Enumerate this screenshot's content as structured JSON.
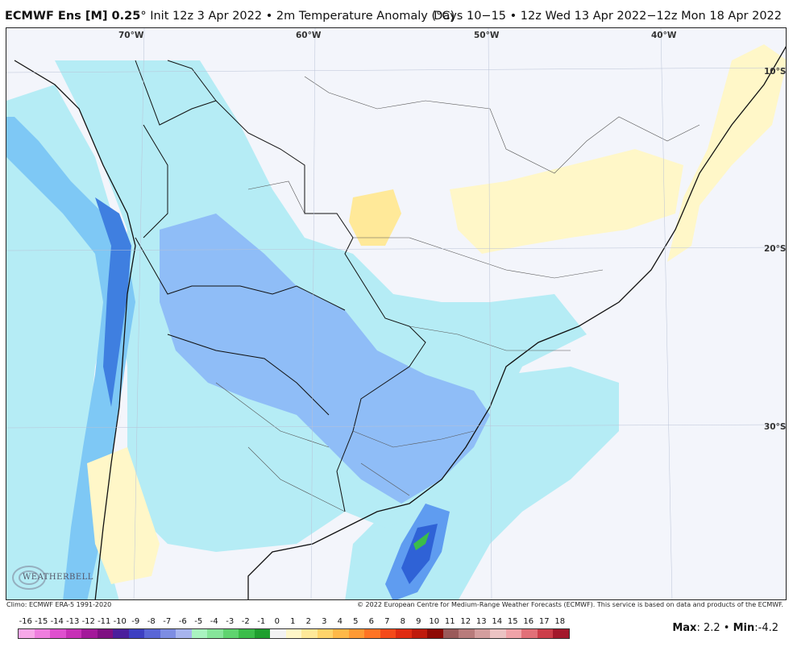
{
  "header": {
    "model": "ECMWF Ens [M] 0.25",
    "degree": "°",
    "init_text": " Init 12z 3 Apr 2022 • 2m Temperature Anomaly (°C)",
    "valid_text": "Days 10−15 • 12z Wed 13 Apr 2022−12z Mon 18 Apr 2022"
  },
  "map": {
    "lon_labels": [
      "70°W",
      "60°W",
      "50°W",
      "40°W"
    ],
    "lat_labels": [
      "10°S",
      "20°S",
      "30°S"
    ],
    "background_color": "#f3f5fb",
    "border_color": "#222222"
  },
  "logo": {
    "text": "WEATHERBELL"
  },
  "credits": {
    "left": "Climo: ECMWF ERA-5 1991-2020",
    "right": "© 2022 European Centre for Medium-Range Weather Forecasts (ECMWF). This service is based on data and products of the ECMWF."
  },
  "colorbar": {
    "labels": [
      "-16",
      "-15",
      "-14",
      "-13",
      "-12",
      "-11",
      "-10",
      "-9",
      "-8",
      "-7",
      "-6",
      "-5",
      "-4",
      "-3",
      "-2",
      "-1",
      "0",
      "1",
      "2",
      "3",
      "4",
      "5",
      "6",
      "7",
      "8",
      "9",
      "10",
      "11",
      "12",
      "13",
      "14",
      "15",
      "16",
      "17",
      "18"
    ],
    "colors": [
      "#f7a8e8",
      "#ee7ede",
      "#df4fcf",
      "#c72fb6",
      "#a3189a",
      "#7f1082",
      "#4b1f9c",
      "#3d3fc2",
      "#5a66d6",
      "#7d8de3",
      "#a7b4ee",
      "#a9f3c0",
      "#86e59a",
      "#5fd46f",
      "#3bbd49",
      "#1f9f2e",
      "#f2f2f2",
      "#fff7c8",
      "#ffe999",
      "#ffd46a",
      "#ffb948",
      "#ff9a33",
      "#ff7424",
      "#f54a1a",
      "#e02b12",
      "#bf1a0c",
      "#8e0a05",
      "#9a5a5a",
      "#b87b7b",
      "#d49e9e",
      "#ebc3c3",
      "#f0a3a8",
      "#e27078",
      "#cc3e4a",
      "#a3192c"
    ]
  },
  "stats": {
    "max_label": "Max",
    "max_value": "2.2",
    "separator": " • ",
    "min_label": "Min",
    "min_value": "-4.2"
  }
}
